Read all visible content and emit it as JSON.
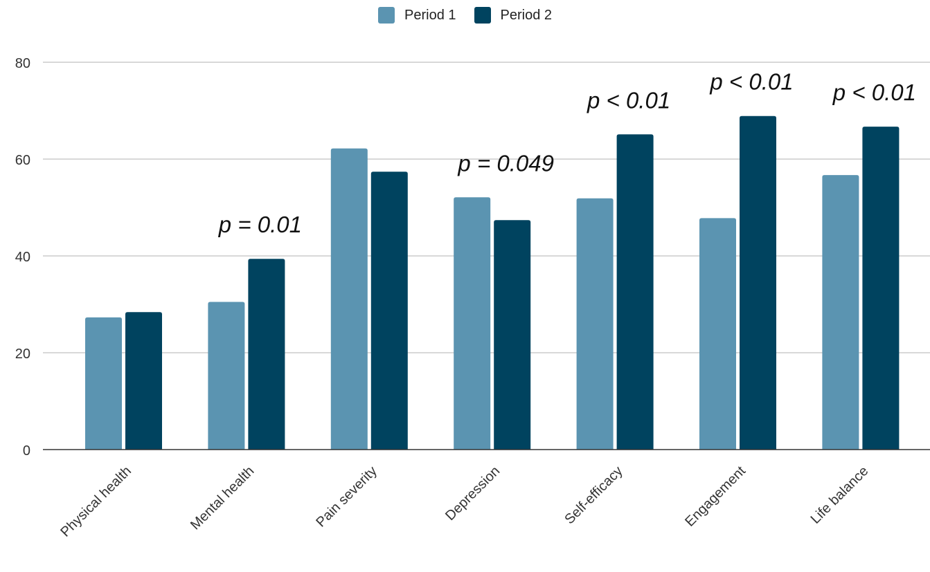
{
  "chart_data": {
    "type": "bar",
    "categories": [
      "Physical health",
      "Mental health",
      "Pain severity",
      "Depression",
      "Self-efficacy",
      "Engagement",
      "Life balance"
    ],
    "series": [
      {
        "name": "Period 1",
        "values": [
          27.3,
          30.5,
          62.2,
          52.1,
          51.9,
          47.8,
          56.7
        ],
        "color": "#5b94b1"
      },
      {
        "name": "Period 2",
        "values": [
          28.4,
          39.4,
          57.4,
          47.4,
          65.1,
          68.9,
          66.7
        ],
        "color": "#00435f"
      }
    ],
    "annotations": [
      {
        "category": "Mental health",
        "text": "p = 0.01"
      },
      {
        "category": "Depression",
        "text": "p = 0.049"
      },
      {
        "category": "Self-efficacy",
        "text": "p < 0.01"
      },
      {
        "category": "Engagement",
        "text": "p < 0.01"
      },
      {
        "category": "Life balance",
        "text": "p < 0.01"
      }
    ],
    "ylim": [
      0,
      80
    ],
    "yticks": [
      0,
      20,
      40,
      60,
      80
    ],
    "grid": true,
    "legend": "top-center",
    "title": "",
    "xlabel": "",
    "ylabel": ""
  }
}
